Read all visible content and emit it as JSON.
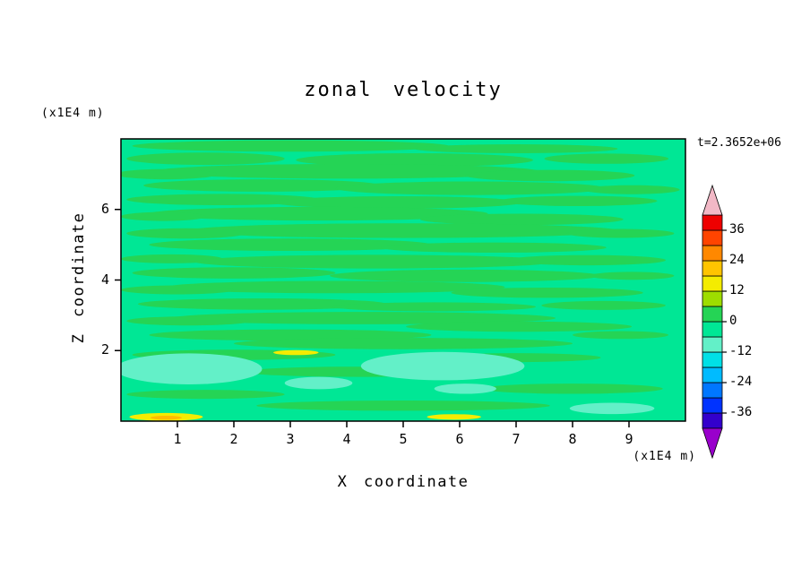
{
  "title": "zonal velocity",
  "timestamp": "t=2.3652e+06",
  "axes": {
    "x_label": "X coordinate",
    "y_label": "Z coordinate",
    "x_unit": "(x1E4 m)",
    "y_unit": "(x1E4 m)",
    "x_ticks": [
      "1",
      "2",
      "3",
      "4",
      "5",
      "6",
      "7",
      "8",
      "9"
    ],
    "x_tick_values": [
      1,
      2,
      3,
      4,
      5,
      6,
      7,
      8,
      9
    ],
    "y_ticks": [
      "2",
      "4",
      "6"
    ],
    "y_tick_values": [
      2,
      4,
      6
    ],
    "x_range": [
      0,
      10
    ],
    "y_range": [
      0,
      8
    ]
  },
  "colorbar": {
    "value_min": -42,
    "value_max": 42,
    "step": 6,
    "tick_values": [
      36,
      24,
      12,
      0,
      -12,
      -24,
      -36
    ],
    "tick_labels": [
      "36",
      "24",
      "12",
      "0",
      "-12",
      "-24",
      "-36"
    ],
    "segments": [
      "#3300cc",
      "#0033ff",
      "#0077ff",
      "#00bbff",
      "#00e0e6",
      "#63f0c8",
      "#00e795",
      "#25d455",
      "#9edd00",
      "#f4ec00",
      "#ffc400",
      "#ff8800",
      "#ff4400",
      "#ee0000"
    ],
    "top_arrow_color": "#f2b8c6",
    "bottom_arrow_color": "#9900cc"
  },
  "chart_data": {
    "type": "heatmap",
    "field": "zonal velocity",
    "title": "zonal velocity",
    "xlabel": "X coordinate (x1E4 m)",
    "ylabel": "Z coordinate (x1E4 m)",
    "x_range": [
      0,
      10
    ],
    "z_range": [
      0,
      8
    ],
    "time": "t=2.3652e+06",
    "contour_interval": 6,
    "contour_levels": [
      -36,
      -30,
      -24,
      -18,
      -12,
      -6,
      0,
      6,
      12,
      18,
      24,
      30,
      36
    ],
    "value_note_levels": {
      "background": "-6 to 0",
      "streaks": "0 to 6",
      "patches": "-12 to -6",
      "spots": "12 to 18"
    },
    "palette": {
      "background": "#00e795",
      "g": "#25d455",
      "c": "#63f0c8",
      "y": "#f4ec00",
      "o": "#ffbb00"
    },
    "streaks": [
      [
        300,
        25,
        280,
        20,
        "g"
      ],
      [
        700,
        35,
        180,
        16,
        "g"
      ],
      [
        150,
        70,
        140,
        22,
        "g"
      ],
      [
        520,
        75,
        210,
        24,
        "g"
      ],
      [
        860,
        70,
        110,
        18,
        "g"
      ],
      [
        400,
        115,
        340,
        26,
        "g"
      ],
      [
        80,
        125,
        90,
        18,
        "g"
      ],
      [
        760,
        130,
        150,
        20,
        "g"
      ],
      [
        250,
        165,
        210,
        22,
        "g"
      ],
      [
        620,
        175,
        240,
        24,
        "g"
      ],
      [
        905,
        180,
        85,
        16,
        "g"
      ],
      [
        180,
        215,
        170,
        20,
        "g"
      ],
      [
        490,
        225,
        220,
        22,
        "g"
      ],
      [
        810,
        220,
        140,
        18,
        "g"
      ],
      [
        350,
        265,
        300,
        24,
        "g"
      ],
      [
        75,
        275,
        75,
        16,
        "g"
      ],
      [
        710,
        285,
        180,
        20,
        "g"
      ],
      [
        500,
        325,
        380,
        26,
        "g"
      ],
      [
        115,
        335,
        105,
        18,
        "g"
      ],
      [
        885,
        335,
        95,
        16,
        "g"
      ],
      [
        300,
        375,
        250,
        22,
        "g"
      ],
      [
        660,
        385,
        200,
        18,
        "g"
      ],
      [
        90,
        425,
        90,
        16,
        "g"
      ],
      [
        450,
        435,
        320,
        24,
        "g"
      ],
      [
        825,
        430,
        140,
        18,
        "g"
      ],
      [
        200,
        475,
        180,
        20,
        "g"
      ],
      [
        610,
        485,
        240,
        22,
        "g"
      ],
      [
        905,
        485,
        75,
        14,
        "g"
      ],
      [
        380,
        525,
        300,
        22,
        "g"
      ],
      [
        100,
        535,
        100,
        16,
        "g"
      ],
      [
        755,
        545,
        170,
        18,
        "g"
      ],
      [
        250,
        585,
        220,
        20,
        "g"
      ],
      [
        555,
        595,
        180,
        16,
        "g"
      ],
      [
        855,
        590,
        110,
        16,
        "g"
      ],
      [
        430,
        635,
        340,
        22,
        "g"
      ],
      [
        120,
        645,
        110,
        16,
        "g"
      ],
      [
        705,
        665,
        200,
        18,
        "g"
      ],
      [
        300,
        695,
        250,
        20,
        "g"
      ],
      [
        885,
        695,
        85,
        14,
        "g"
      ],
      [
        500,
        725,
        300,
        20,
        "g"
      ],
      [
        200,
        765,
        180,
        18,
        "g"
      ],
      [
        700,
        775,
        150,
        16,
        "g"
      ],
      [
        420,
        825,
        200,
        18,
        "g"
      ],
      [
        150,
        905,
        140,
        16,
        "g"
      ],
      [
        800,
        885,
        160,
        18,
        "g"
      ],
      [
        500,
        945,
        260,
        18,
        "g"
      ],
      [
        120,
        815,
        130,
        55,
        "c"
      ],
      [
        570,
        805,
        145,
        50,
        "c"
      ],
      [
        350,
        865,
        60,
        22,
        "c"
      ],
      [
        610,
        885,
        55,
        18,
        "c"
      ],
      [
        870,
        955,
        75,
        20,
        "c"
      ],
      [
        310,
        757,
        40,
        9,
        "y"
      ],
      [
        80,
        985,
        65,
        14,
        "y"
      ],
      [
        80,
        988,
        28,
        7,
        "o"
      ],
      [
        590,
        985,
        48,
        10,
        "y"
      ]
    ]
  }
}
